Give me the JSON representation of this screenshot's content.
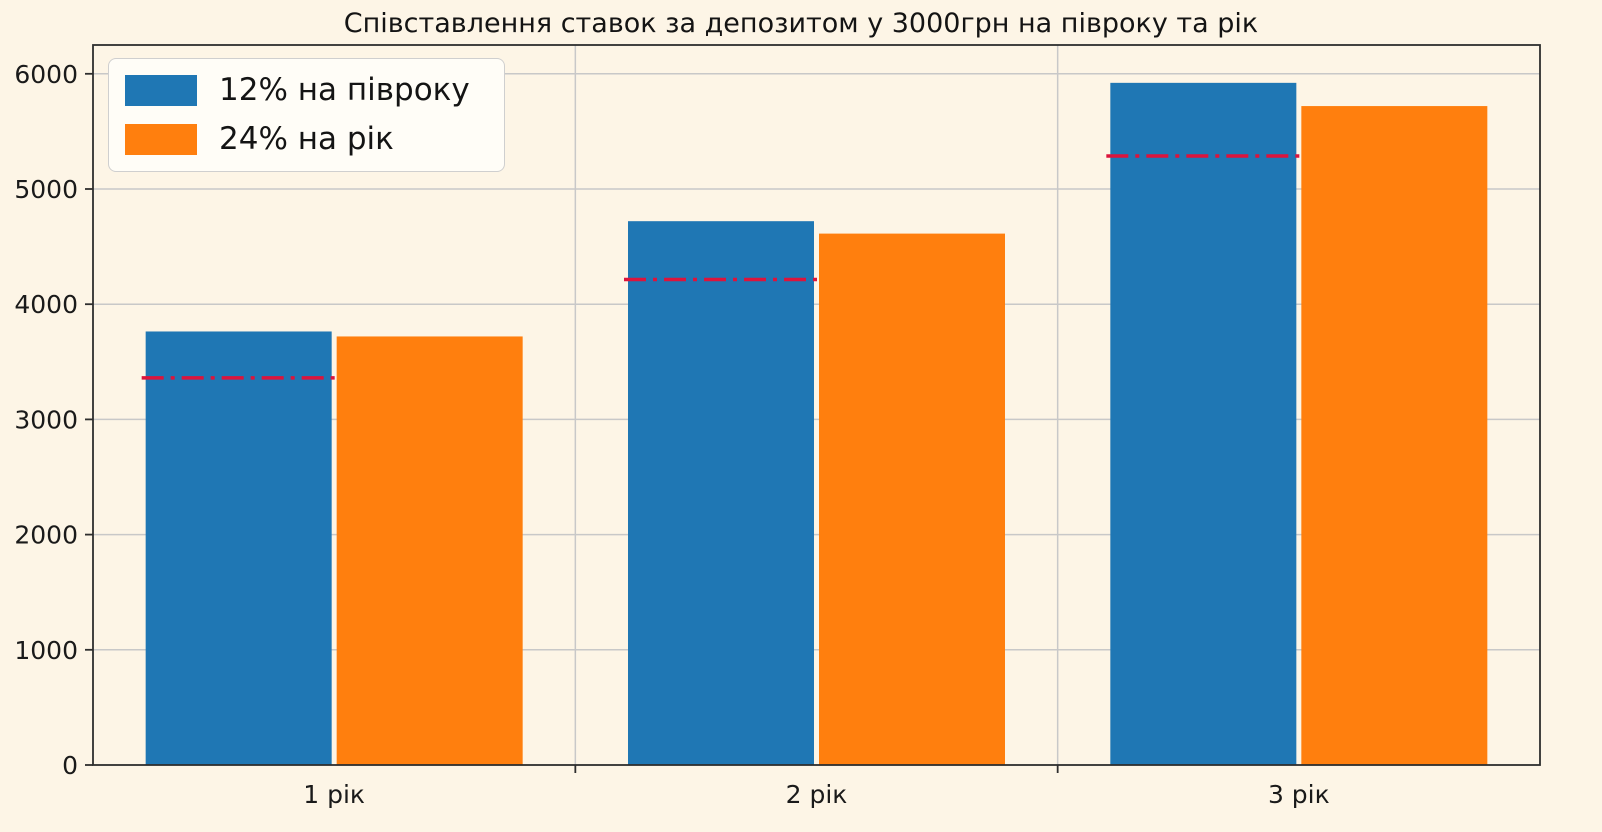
{
  "chart_data": {
    "type": "bar",
    "title": "Співставлення ставок за депозитом у 3000грн на півроку та рік",
    "categories": [
      "1 рік",
      "2 рік",
      "3 рік"
    ],
    "series": [
      {
        "name": "12% на півроку",
        "color": "#1f77b4",
        "values": [
          3763.2,
          4720.6,
          5921.5
        ]
      },
      {
        "name": "24% на рік",
        "color": "#ff7f0e",
        "values": [
          3720.0,
          4612.8,
          5719.9
        ]
      }
    ],
    "marker_lines": {
      "style": "dash-dot",
      "color": "#dc143c",
      "values": [
        3360.0,
        4214.8,
        5286.9
      ]
    },
    "xlabel": "",
    "ylabel": "",
    "ylim": [
      0,
      6250
    ],
    "yticks": [
      0,
      1000,
      2000,
      3000,
      4000,
      5000,
      6000
    ],
    "grid": true,
    "legend_position": "upper-left",
    "colors": {
      "figure_background": "#fdf5e6",
      "axes_background": "#fdf5e6",
      "grid": "#c8c8c8",
      "spine": "#2e2e2e",
      "tick_label": "#1a1a1a"
    }
  }
}
